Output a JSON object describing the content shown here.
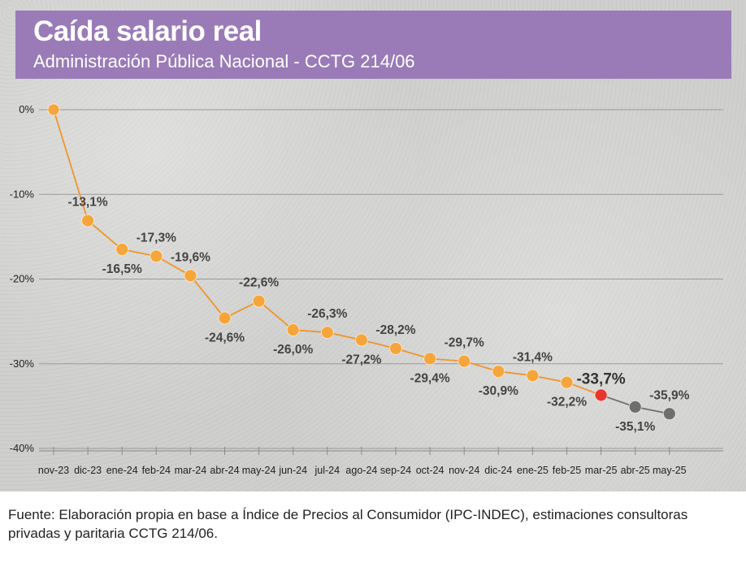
{
  "header": {
    "title": "Caída salario real",
    "subtitle": "Administración Pública Nacional - CCTG 214/06"
  },
  "footer": {
    "source": "Fuente: Elaboración propia en base a Índice de Precios al Consumidor (IPC-INDEC), estimaciones consultoras privadas y paritaria CCTG 214/06."
  },
  "colors": {
    "header_bg": "#9a7bb8",
    "line": "#f0942a",
    "point": "#f5a53a",
    "highlight": "#e8352e",
    "projection": "#6e6e6e",
    "grid": "#9a9a9a"
  },
  "chart_data": {
    "type": "line",
    "title": "Caída salario real",
    "subtitle": "Administración Pública Nacional - CCTG 214/06",
    "categories": [
      "nov-23",
      "dic-23",
      "ene-24",
      "feb-24",
      "mar-24",
      "abr-24",
      "may-24",
      "jun-24",
      "jul-24",
      "ago-24",
      "sep-24",
      "oct-24",
      "nov-24",
      "dic-24",
      "ene-25",
      "feb-25",
      "mar-25",
      "abr-25",
      "may-25"
    ],
    "values": [
      0,
      -13.1,
      -16.5,
      -17.3,
      -19.6,
      -24.6,
      -22.6,
      -26.0,
      -26.3,
      -27.2,
      -28.2,
      -29.4,
      -29.7,
      -30.9,
      -31.4,
      -32.2,
      -33.7,
      -35.1,
      -35.9
    ],
    "labels": [
      "",
      "-13,1%",
      "-16,5%",
      "-17,3%",
      "-19,6%",
      "-24,6%",
      "-22,6%",
      "-26,0%",
      "-26,3%",
      "-27,2%",
      "-28,2%",
      "-29,4%",
      "-29,7%",
      "-30,9%",
      "-31,4%",
      "-32,2%",
      "-33,7%",
      "-35,1%",
      "-35,9%"
    ],
    "label_position": [
      "above",
      "above",
      "below",
      "above",
      "above",
      "below",
      "above",
      "below",
      "above",
      "below",
      "above",
      "below",
      "above",
      "below",
      "above",
      "below",
      "above",
      "below",
      "above"
    ],
    "point_kind": [
      "base",
      "actual",
      "actual",
      "actual",
      "actual",
      "actual",
      "actual",
      "actual",
      "actual",
      "actual",
      "actual",
      "actual",
      "actual",
      "actual",
      "actual",
      "actual",
      "highlight",
      "projection",
      "projection"
    ],
    "yticks": [
      0,
      -10,
      -20,
      -30,
      -40
    ],
    "ytick_labels": [
      "0%",
      "-10%",
      "-20%",
      "-30%",
      "-40%"
    ],
    "ylim": [
      -40,
      0
    ],
    "grid": true
  }
}
